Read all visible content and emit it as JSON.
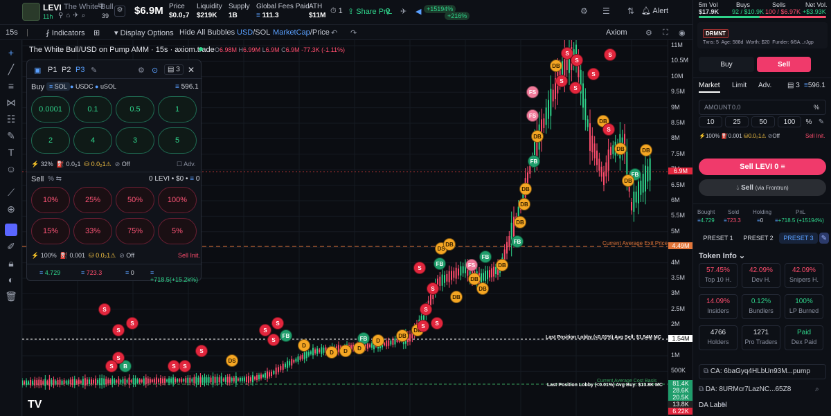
{
  "header": {
    "ticker": "LEVI",
    "name": "The White Bull",
    "age": "11h",
    "holders_icon_count": "39",
    "market_cap": "$6.9M",
    "stats": [
      {
        "label": "Price",
        "value": "$0.0₂7"
      },
      {
        "label": "Liquidity",
        "value": "$219K"
      },
      {
        "label": "Supply",
        "value": "1B"
      },
      {
        "label": "Global Fees Paid",
        "value": "111.3"
      },
      {
        "label": "ATH",
        "value": "$11M"
      }
    ],
    "watch_count": "1",
    "share_pnl": "Share PnL",
    "pnl_badge_1": "+15194%",
    "pnl_badge_2": "+216%",
    "alert": "Alert"
  },
  "toolbar": {
    "interval": "15s",
    "indicators": "Indicators",
    "display_options": "Display Options",
    "hide_bubbles": "Hide All Bubbles",
    "usd": "USD",
    "sol": "SOL",
    "marketcap": "MarketCap",
    "price": "Price",
    "axiom": "Axiom"
  },
  "chart": {
    "title": "The White Bull/USD on Pump AMM · 15s · axiom.trade",
    "ohlc": {
      "o": "6.98M",
      "h": "6.99M",
      "l": "6.9M",
      "c": "6.9M",
      "chg": "-77.3K (-1.11%)"
    },
    "price_labels": [
      "11M",
      "10.5M",
      "10M",
      "9.5M",
      "9M",
      "8.5M",
      "8M",
      "7.5M",
      "7M",
      "6.5M",
      "6M",
      "5.5M",
      "5M",
      "4.5M",
      "4M",
      "3.5M",
      "3M",
      "2.5M",
      "2M",
      "1.5M",
      "1M",
      "500K"
    ],
    "current_tag": "6.9M",
    "exit_tag": "4.49M",
    "exit_label": "Current Average Exit Price",
    "lobby_sell": "Last Position Lobby (<0.01%) Avg Sell: $1.54M MC",
    "lobby_sell_tag": "1.54M",
    "lobby_buy": "Last Position Lobby (<0.01%) Avg Buy: $13.8K MC",
    "cost_basis": "Current Average Cost Basis",
    "bottom_tags": [
      "81.4K",
      "28.6K",
      "20.5K",
      "13.8K",
      "6.22K"
    ]
  },
  "panel": {
    "presets": [
      "P1",
      "P2",
      "P3"
    ],
    "count": "3",
    "buy_label": "Buy",
    "currencies": [
      "SOL",
      "USDC",
      "uSOL"
    ],
    "balance": "596.1",
    "buy_amounts": [
      "0.0001",
      "0.1",
      "0.5",
      "1",
      "2",
      "4",
      "3",
      "5"
    ],
    "buy_settings": {
      "slip": "32%",
      "fee": "0.0₂1",
      "tip": "0.0₂1",
      "mev": "Off",
      "adv": "Adv."
    },
    "sell_label": "Sell",
    "sell_pct": "%",
    "sell_balance": "0 LEVI • $0 • ",
    "sell_bal_sol": "0",
    "sell_amounts": [
      "10%",
      "25%",
      "50%",
      "100%",
      "15%",
      "33%",
      "75%",
      "5%"
    ],
    "sell_settings": {
      "slip": "100%",
      "fee": "0.001",
      "tip": "0.0₂1",
      "mev": "Off",
      "init": "Sell Init."
    },
    "footer": {
      "bought": "4.729",
      "sold": "723.3",
      "holding": "0",
      "pnl": "+718.5(+15.2k%)"
    }
  },
  "right": {
    "vol_label": "5m Vol",
    "vol": "$17.9K",
    "buys_label": "Buys",
    "buys": "92 / $10.9K",
    "sells_label": "Sells",
    "sells": "100 / $6.97K",
    "net_label": "Net Vol.",
    "net": "+$3.93K",
    "dev_tag": "DRMNT",
    "txns": "Txns: 5",
    "age": "Age: 588d",
    "worth": "Worth: $20",
    "funder": "Funder: 6i5A...rJgp",
    "buy_tab": "Buy",
    "sell_tab": "Sell",
    "order_tabs": [
      "Market",
      "Limit",
      "Adv."
    ],
    "preset_count": "3",
    "balance": "596.1",
    "amount_label": "AMOUNT",
    "amount_value": "0.0",
    "amount_unit": "%",
    "pcts": [
      "10",
      "25",
      "50",
      "100"
    ],
    "settings": {
      "slip": "100%",
      "fee": "0.001",
      "tip": "0.0₂1",
      "mev": "Off",
      "init": "Sell Init."
    },
    "sell_btn": "Sell LEVI 0",
    "frontrun_btn": "Sell",
    "frontrun_sub": "(via Frontrun)",
    "pnl_heads": [
      "Bought",
      "Sold",
      "Holding",
      "PnL"
    ],
    "pnl_vals": [
      "4.729",
      "723.3",
      "0",
      "+718.5 (+15194%)"
    ],
    "presets": [
      "PRESET 1",
      "PRESET 2",
      "PRESET 3"
    ],
    "token_info": "Token Info",
    "info": [
      {
        "v": "57.45%",
        "l": "Top 10 H.",
        "c": "red"
      },
      {
        "v": "42.09%",
        "l": "Dev H.",
        "c": "red"
      },
      {
        "v": "42.09%",
        "l": "Snipers H.",
        "c": "red"
      },
      {
        "v": "14.09%",
        "l": "Insiders",
        "c": "red"
      },
      {
        "v": "0.12%",
        "l": "Bundlers",
        "c": "green"
      },
      {
        "v": "100%",
        "l": "LP Burned",
        "c": "green"
      },
      {
        "v": "4766",
        "l": "Holders",
        "c": "white"
      },
      {
        "v": "1271",
        "l": "Pro Traders",
        "c": "white"
      },
      {
        "v": "Paid",
        "l": "Dex Paid",
        "c": "green"
      }
    ],
    "ca": "CA: 6baGyq4HLbUn93M...pump",
    "da": "DA: 8URMcr7LazNC...65Z8",
    "da_label": "DA Label"
  },
  "colors": {
    "green": "#2fd48b",
    "red": "#ff4d6d",
    "accent": "#f03a6b",
    "blue": "#5aa0ff"
  }
}
